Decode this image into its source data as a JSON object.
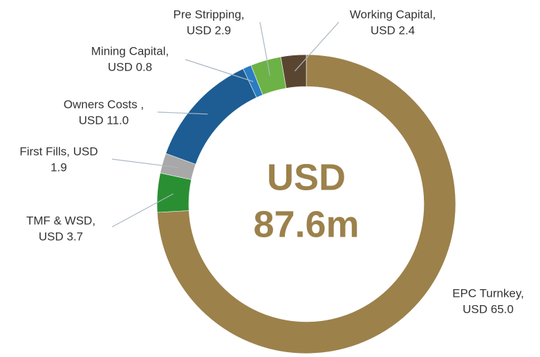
{
  "chart_data": {
    "type": "donut",
    "values": [
      65.0,
      3.7,
      1.9,
      11.0,
      0.8,
      2.9,
      2.4
    ],
    "value_labels": [
      [
        "EPC Turnkey,",
        "USD 65.0"
      ],
      [
        "TMF & WSD,",
        "USD 3.7"
      ],
      [
        "First Fills, USD",
        "1.9"
      ],
      [
        "Owners Costs ,",
        "USD 11.0"
      ],
      [
        "Mining Capital,",
        "USD 0.8"
      ],
      [
        "Pre Stripping,",
        "USD 2.9"
      ],
      [
        "Working Capital,",
        "USD 2.4"
      ]
    ],
    "colors": [
      "#9c814b",
      "#2a8f33",
      "#a8a8a8",
      "#1d5d94",
      "#2b7cc2",
      "#6db246",
      "#5a4630"
    ],
    "center_text": [
      "USD",
      "87.6m"
    ],
    "center_color": "#9c814b"
  }
}
